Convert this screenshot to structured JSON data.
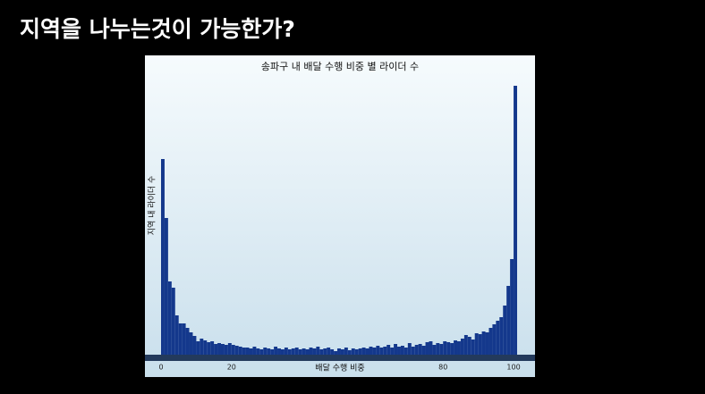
{
  "page_title": "지역을 나누는것이 가능한가?",
  "chart_data": {
    "type": "histogram",
    "title": "송파구 내 배달 수행 비중 별 라이더 수",
    "x_label": "배달 수행 비중",
    "y_label": "지역 내 라이더 수",
    "bins": [
      0,
      1,
      2,
      3,
      4,
      5,
      6,
      7,
      8,
      9,
      10,
      11,
      12,
      13,
      14,
      15,
      16,
      17,
      18,
      19,
      20,
      21,
      22,
      23,
      24,
      25,
      26,
      27,
      28,
      29,
      30,
      31,
      32,
      33,
      34,
      35,
      36,
      37,
      38,
      39,
      40,
      41,
      42,
      43,
      44,
      45,
      46,
      47,
      48,
      49,
      50,
      51,
      52,
      53,
      54,
      55,
      56,
      57,
      58,
      59,
      60,
      61,
      62,
      63,
      64,
      65,
      66,
      67,
      68,
      69,
      70,
      71,
      72,
      73,
      74,
      75,
      76,
      77,
      78,
      79,
      80,
      81,
      82,
      83,
      84,
      85,
      86,
      87,
      88,
      89,
      90,
      91,
      92,
      93,
      94,
      95,
      96,
      97,
      98,
      99,
      100,
      101
    ],
    "values": [
      219,
      153,
      82,
      75,
      44,
      35,
      35,
      30,
      25,
      21,
      15,
      18,
      16,
      14,
      15,
      12,
      13,
      12,
      11,
      13,
      11,
      10,
      9,
      8,
      8,
      7,
      9,
      7,
      6,
      8,
      7,
      6,
      9,
      7,
      6,
      8,
      6,
      7,
      8,
      6,
      7,
      6,
      8,
      7,
      9,
      6,
      7,
      8,
      6,
      4,
      7,
      6,
      8,
      5,
      7,
      6,
      7,
      8,
      7,
      9,
      8,
      10,
      8,
      9,
      11,
      8,
      12,
      9,
      10,
      8,
      13,
      9,
      11,
      12,
      10,
      14,
      15,
      11,
      13,
      12,
      15,
      14,
      13,
      16,
      15,
      18,
      22,
      20,
      17,
      24,
      23,
      26,
      25,
      30,
      34,
      38,
      42,
      55,
      77,
      107,
      301
    ],
    "color": "#14388c",
    "xlim": [
      0,
      101
    ],
    "ylim": [
      0,
      310
    ],
    "xticks": [
      0,
      20,
      80,
      100
    ]
  }
}
